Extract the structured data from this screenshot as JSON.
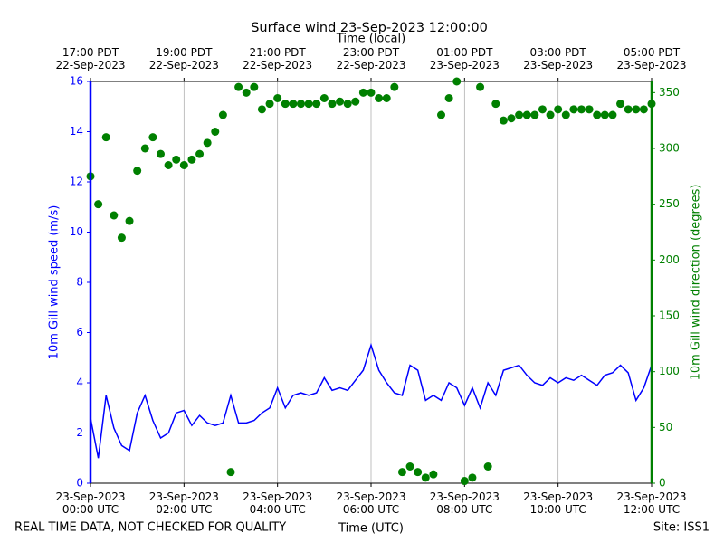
{
  "chart_data": {
    "type": "line",
    "title": "Surface wind 23-Sep-2023 12:00:00",
    "xlabel": "Time (UTC)",
    "top_xlabel": "Time (local)",
    "ylabel": "10m Gill wind speed (m/s)",
    "y2label": "10m Gill wind direction (degrees)",
    "footer_left": "REAL TIME DATA, NOT CHECKED FOR QUALITY",
    "footer_right": "Site: ISS1",
    "x": [
      "00:00",
      "00:10",
      "00:20",
      "00:30",
      "00:40",
      "00:50",
      "01:00",
      "01:10",
      "01:20",
      "01:30",
      "01:40",
      "01:50",
      "02:00",
      "02:10",
      "02:20",
      "02:30",
      "02:40",
      "02:50",
      "03:00",
      "03:10",
      "03:20",
      "03:30",
      "03:40",
      "03:50",
      "04:00",
      "04:10",
      "04:20",
      "04:30",
      "04:40",
      "04:50",
      "05:00",
      "05:10",
      "05:20",
      "05:30",
      "05:40",
      "05:50",
      "06:00",
      "06:10",
      "06:20",
      "06:30",
      "06:40",
      "06:50",
      "07:00",
      "07:10",
      "07:20",
      "07:30",
      "07:40",
      "07:50",
      "08:00",
      "08:10",
      "08:20",
      "08:30",
      "08:40",
      "08:50",
      "09:00",
      "09:10",
      "09:20",
      "09:30",
      "09:40",
      "09:50",
      "10:00",
      "10:10",
      "10:20",
      "10:30",
      "10:40",
      "10:50",
      "11:00",
      "11:10",
      "11:20",
      "11:30",
      "11:40",
      "11:50",
      "12:00"
    ],
    "xlim": [
      "00:00",
      "12:00"
    ],
    "xticks": [
      {
        "value": "00:00",
        "label": "23-Sep-2023\n00:00 UTC"
      },
      {
        "value": "02:00",
        "label": "23-Sep-2023\n02:00 UTC"
      },
      {
        "value": "04:00",
        "label": "23-Sep-2023\n04:00 UTC"
      },
      {
        "value": "06:00",
        "label": "23-Sep-2023\n06:00 UTC"
      },
      {
        "value": "08:00",
        "label": "23-Sep-2023\n08:00 UTC"
      },
      {
        "value": "10:00",
        "label": "23-Sep-2023\n10:00 UTC"
      },
      {
        "value": "12:00",
        "label": "23-Sep-2023\n12:00 UTC"
      }
    ],
    "top_xticks": [
      {
        "value": "00:00",
        "label": "17:00 PDT\n22-Sep-2023"
      },
      {
        "value": "02:00",
        "label": "19:00 PDT\n22-Sep-2023"
      },
      {
        "value": "04:00",
        "label": "21:00 PDT\n22-Sep-2023"
      },
      {
        "value": "06:00",
        "label": "23:00 PDT\n22-Sep-2023"
      },
      {
        "value": "08:00",
        "label": "01:00 PDT\n23-Sep-2023"
      },
      {
        "value": "10:00",
        "label": "03:00 PDT\n23-Sep-2023"
      },
      {
        "value": "12:00",
        "label": "05:00 PDT\n23-Sep-2023"
      }
    ],
    "ylim": [
      0,
      16
    ],
    "yticks": [
      0,
      2,
      4,
      6,
      8,
      10,
      12,
      14,
      16
    ],
    "y2lim": [
      0,
      360
    ],
    "y2ticks": [
      0,
      50,
      100,
      150,
      200,
      250,
      300,
      350
    ],
    "xgrid": true,
    "series": [
      {
        "name": "10m Gill wind speed",
        "color": "#0000ff",
        "values": [
          2.6,
          1.0,
          3.5,
          2.2,
          1.5,
          1.3,
          2.8,
          3.5,
          2.5,
          1.8,
          2.0,
          2.8,
          2.9,
          2.3,
          2.7,
          2.4,
          2.3,
          2.4,
          3.5,
          2.4,
          2.4,
          2.5,
          2.8,
          3.0,
          3.8,
          3.0,
          3.5,
          3.6,
          3.5,
          3.6,
          4.2,
          3.7,
          3.8,
          3.7,
          4.1,
          4.5,
          5.5,
          4.5,
          4.0,
          3.6,
          3.5,
          4.7,
          4.5,
          3.3,
          3.5,
          3.3,
          4.0,
          3.8,
          3.1,
          3.8,
          3.0,
          4.0,
          3.5,
          4.5,
          4.6,
          4.7,
          4.3,
          4.0,
          3.9,
          4.2,
          4.0,
          4.2,
          4.1,
          4.3,
          4.1,
          3.9,
          4.3,
          4.4,
          4.7,
          4.4,
          3.3,
          3.8,
          4.7
        ]
      },
      {
        "name": "10m Gill wind direction",
        "color": "#008000",
        "axis": "y2",
        "marker": "scatter",
        "values": [
          275,
          250,
          310,
          240,
          220,
          235,
          280,
          300,
          310,
          295,
          285,
          290,
          285,
          290,
          295,
          305,
          315,
          330,
          10,
          355,
          350,
          355,
          335,
          340,
          345,
          340,
          340,
          340,
          340,
          340,
          345,
          340,
          342,
          340,
          342,
          350,
          350,
          345,
          345,
          355,
          10,
          15,
          10,
          5,
          8,
          330,
          345,
          360,
          2,
          5,
          355,
          15,
          340,
          325,
          327,
          330,
          330,
          330,
          335,
          330,
          335,
          330,
          335,
          335,
          335,
          330,
          330,
          330,
          340,
          335,
          335,
          335,
          340
        ]
      }
    ]
  }
}
